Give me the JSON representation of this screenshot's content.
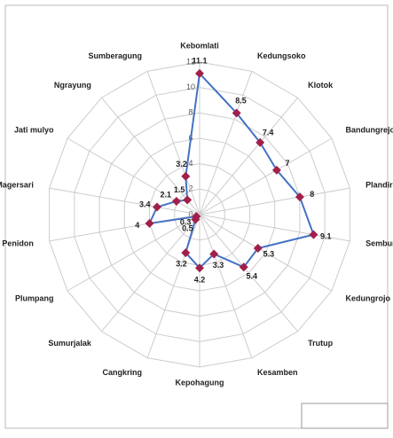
{
  "chart_data": {
    "type": "radar",
    "categories": [
      "Kebomlati",
      "Kedungsoko",
      "Klotok",
      "Bandungrejo",
      "Plandirejo",
      "Sembungrejo",
      "Kedungrojo",
      "Trutup",
      "Kesamben",
      "Kepohagung",
      "Cangkring",
      "Sumurjalak",
      "Plumpang",
      "Penidon",
      "Magersari",
      "Jati mulyo",
      "Ngrayung",
      "Sumberagung"
    ],
    "values": [
      11.1,
      8.5,
      7.4,
      7,
      8,
      9.1,
      5.3,
      5.4,
      3.3,
      4.2,
      3.2,
      0.5,
      0.3,
      4,
      3.4,
      2.1,
      1.5,
      3.2
    ],
    "color": "#4472c4",
    "marker_color": "#a0204a",
    "ylim": [
      0,
      12
    ],
    "yticks": [
      0,
      2,
      4,
      6,
      8,
      10,
      12
    ],
    "grid": true
  }
}
